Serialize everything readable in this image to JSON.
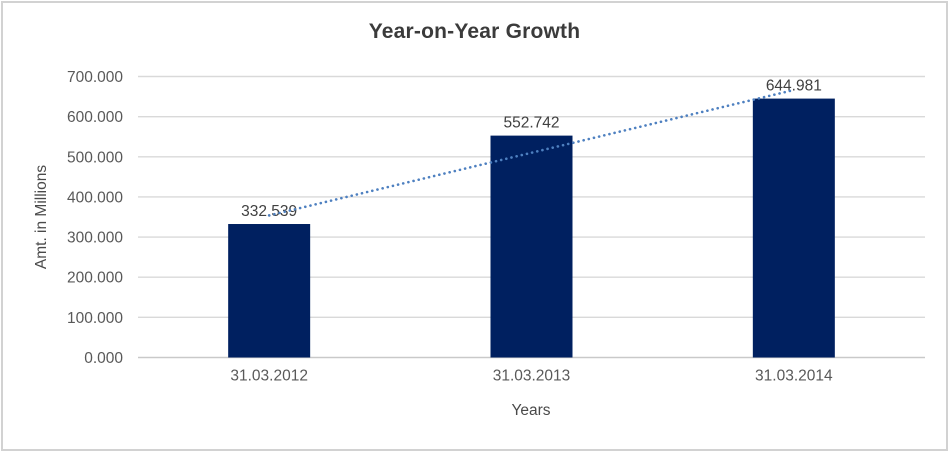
{
  "chart_data": {
    "type": "bar",
    "title": "Year-on-Year Growth",
    "xlabel": "Years",
    "ylabel": "Amt. in Millions",
    "categories": [
      "31.03.2012",
      "31.03.2013",
      "31.03.2014"
    ],
    "values": [
      332.539,
      552.742,
      644.981
    ],
    "data_labels": [
      "332.539",
      "552.742",
      "644.981"
    ],
    "y_ticks": [
      "0.000",
      "100.000",
      "200.000",
      "300.000",
      "400.000",
      "500.000",
      "600.000",
      "700.000"
    ],
    "ylim": [
      0,
      700
    ],
    "grid": true,
    "legend": "none",
    "trendline": {
      "type": "linear",
      "style": "dotted"
    },
    "colors": {
      "bar": "#002060",
      "trendline": "#4e80c0",
      "gridline": "#d9d9d9",
      "axis_line": "#c9c9c9",
      "title_text": "#3b3b3b",
      "tick_text": "#595959",
      "label_text": "#404040",
      "border": "#d2d2d2"
    }
  }
}
